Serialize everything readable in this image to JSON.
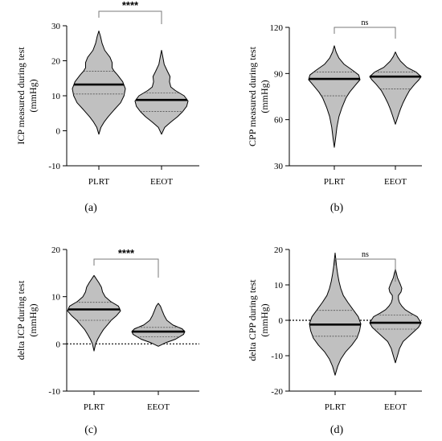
{
  "colors": {
    "violin_fill": "#c0c0c0",
    "stroke": "#000000",
    "bracket": "#7a7a7a"
  },
  "chart_data": [
    {
      "type": "violin",
      "panel": "(a)",
      "ylabel_lines": [
        "ICP measured during test",
        "(mmHg)"
      ],
      "ylim": [
        -10,
        30
      ],
      "yticks": [
        -10,
        0,
        10,
        20,
        30
      ],
      "categories": [
        "PLRT",
        "EEOT"
      ],
      "zero_line": false,
      "significance": "****",
      "violins": [
        {
          "name": "PLRT",
          "median": 13.2,
          "q1": 10.5,
          "q3": 17.0,
          "profile": [
            [
              -1,
              0
            ],
            [
              1,
              0.08
            ],
            [
              2.5,
              0.2
            ],
            [
              4,
              0.35
            ],
            [
              6,
              0.58
            ],
            [
              8,
              0.82
            ],
            [
              10,
              0.95
            ],
            [
              12,
              1.0
            ],
            [
              14,
              0.9
            ],
            [
              16,
              0.7
            ],
            [
              17,
              0.58
            ],
            [
              18,
              0.5
            ],
            [
              19.5,
              0.5
            ],
            [
              21,
              0.42
            ],
            [
              23,
              0.22
            ],
            [
              25,
              0.12
            ],
            [
              27,
              0.06
            ],
            [
              28.5,
              0
            ]
          ]
        },
        {
          "name": "EEOT",
          "median": 8.8,
          "q1": 5.5,
          "q3": 10.8,
          "profile": [
            [
              -1,
              0
            ],
            [
              1,
              0.12
            ],
            [
              2.5,
              0.35
            ],
            [
              4,
              0.6
            ],
            [
              5.5,
              0.8
            ],
            [
              7,
              0.95
            ],
            [
              8.5,
              1.0
            ],
            [
              10,
              0.85
            ],
            [
              11.5,
              0.52
            ],
            [
              12.5,
              0.35
            ],
            [
              14,
              0.3
            ],
            [
              15.5,
              0.32
            ],
            [
              17,
              0.22
            ],
            [
              19,
              0.1
            ],
            [
              21,
              0.05
            ],
            [
              23,
              0
            ]
          ]
        }
      ]
    },
    {
      "type": "violin",
      "panel": "(b)",
      "ylabel_lines": [
        "CPP measured during test",
        "(mmHg)"
      ],
      "ylim": [
        30,
        120
      ],
      "yticks": [
        30,
        60,
        90,
        120
      ],
      "categories": [
        "PLRT",
        "EEOT"
      ],
      "zero_line": false,
      "significance": "ns",
      "violins": [
        {
          "name": "PLRT",
          "median": 86.5,
          "q1": 75.5,
          "q3": 91.0,
          "profile": [
            [
              42,
              0
            ],
            [
              48,
              0.05
            ],
            [
              55,
              0.1
            ],
            [
              62,
              0.18
            ],
            [
              68,
              0.3
            ],
            [
              74,
              0.45
            ],
            [
              78,
              0.6
            ],
            [
              82,
              0.8
            ],
            [
              86,
              1.0
            ],
            [
              89,
              0.95
            ],
            [
              92,
              0.72
            ],
            [
              96,
              0.38
            ],
            [
              100,
              0.18
            ],
            [
              104,
              0.07
            ],
            [
              108,
              0
            ]
          ]
        },
        {
          "name": "EEOT",
          "median": 88.0,
          "q1": 80.0,
          "q3": 91.0,
          "profile": [
            [
              57,
              0
            ],
            [
              60,
              0.06
            ],
            [
              63,
              0.12
            ],
            [
              67,
              0.2
            ],
            [
              71,
              0.3
            ],
            [
              75,
              0.42
            ],
            [
              79,
              0.55
            ],
            [
              83,
              0.75
            ],
            [
              86,
              0.92
            ],
            [
              88,
              1.0
            ],
            [
              91,
              0.8
            ],
            [
              94,
              0.45
            ],
            [
              98,
              0.2
            ],
            [
              101,
              0.08
            ],
            [
              104,
              0
            ]
          ]
        }
      ]
    },
    {
      "type": "violin",
      "panel": "(c)",
      "ylabel_lines": [
        "delta ICP during test",
        "(mmHg)"
      ],
      "ylim": [
        -10,
        20
      ],
      "yticks": [
        -10,
        0,
        10,
        20
      ],
      "categories": [
        "PLRT",
        "EEOT"
      ],
      "zero_line": true,
      "significance": "****",
      "violins": [
        {
          "name": "PLRT",
          "median": 7.3,
          "q1": 5.0,
          "q3": 8.8,
          "profile": [
            [
              -1.5,
              0
            ],
            [
              0,
              0.06
            ],
            [
              1,
              0.14
            ],
            [
              2,
              0.24
            ],
            [
              3,
              0.35
            ],
            [
              4,
              0.5
            ],
            [
              5,
              0.65
            ],
            [
              6,
              0.85
            ],
            [
              7,
              1.0
            ],
            [
              8,
              0.92
            ],
            [
              9,
              0.62
            ],
            [
              10,
              0.42
            ],
            [
              11,
              0.32
            ],
            [
              12,
              0.28
            ],
            [
              13,
              0.18
            ],
            [
              14.5,
              0
            ]
          ]
        },
        {
          "name": "EEOT",
          "median": 2.6,
          "q1": 1.5,
          "q3": 3.5,
          "profile": [
            [
              -0.5,
              0
            ],
            [
              0.3,
              0.3
            ],
            [
              1,
              0.65
            ],
            [
              2,
              0.95
            ],
            [
              2.6,
              1.0
            ],
            [
              3.2,
              0.9
            ],
            [
              4,
              0.55
            ],
            [
              5,
              0.32
            ],
            [
              6,
              0.22
            ],
            [
              7,
              0.15
            ],
            [
              8,
              0.08
            ],
            [
              8.6,
              0
            ]
          ]
        }
      ]
    },
    {
      "type": "violin",
      "panel": "(d)",
      "ylabel_lines": [
        "delta CPP during test",
        "(mmHg)"
      ],
      "ylim": [
        -20,
        20
      ],
      "yticks": [
        -20,
        -10,
        0,
        10,
        20
      ],
      "categories": [
        "PLRT",
        "EEOT"
      ],
      "zero_line": true,
      "significance": "ns",
      "violins": [
        {
          "name": "PLRT",
          "median": -1.2,
          "q1": -4.5,
          "q3": 2.8,
          "profile": [
            [
              -15.5,
              0
            ],
            [
              -13,
              0.1
            ],
            [
              -11,
              0.22
            ],
            [
              -9,
              0.4
            ],
            [
              -7,
              0.65
            ],
            [
              -5,
              0.85
            ],
            [
              -3,
              0.95
            ],
            [
              -1,
              1.0
            ],
            [
              1,
              0.9
            ],
            [
              3,
              0.7
            ],
            [
              5,
              0.5
            ],
            [
              7,
              0.32
            ],
            [
              9,
              0.22
            ],
            [
              11,
              0.15
            ],
            [
              13,
              0.1
            ],
            [
              15,
              0.06
            ],
            [
              17,
              0.03
            ],
            [
              19,
              0
            ]
          ]
        },
        {
          "name": "EEOT",
          "median": -0.7,
          "q1": -2.5,
          "q3": 1.5,
          "profile": [
            [
              -12,
              0
            ],
            [
              -10,
              0.08
            ],
            [
              -8,
              0.16
            ],
            [
              -6,
              0.3
            ],
            [
              -4,
              0.6
            ],
            [
              -2,
              0.9
            ],
            [
              -0.7,
              1.0
            ],
            [
              1,
              0.85
            ],
            [
              2,
              0.6
            ],
            [
              3,
              0.38
            ],
            [
              4,
              0.25
            ],
            [
              5,
              0.16
            ],
            [
              6,
              0.12
            ],
            [
              7,
              0.12
            ],
            [
              8,
              0.22
            ],
            [
              9,
              0.25
            ],
            [
              10,
              0.2
            ],
            [
              12,
              0.08
            ],
            [
              14.5,
              0
            ]
          ]
        }
      ]
    }
  ]
}
